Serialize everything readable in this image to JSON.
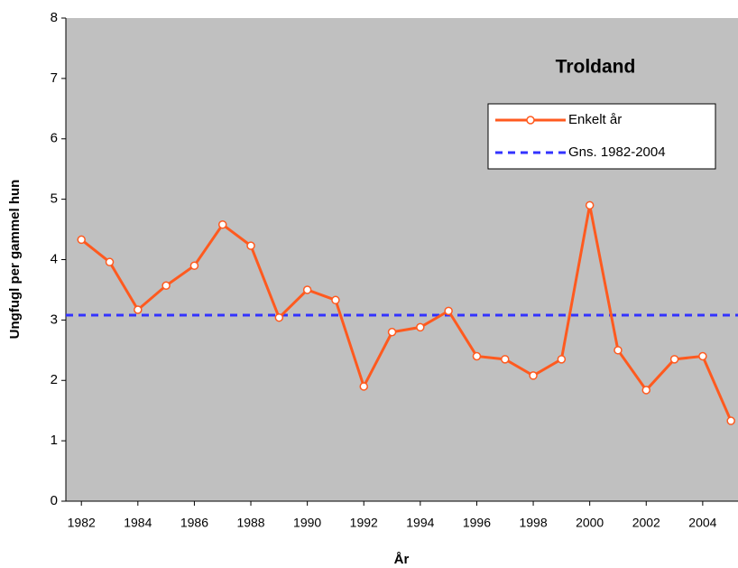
{
  "chart_data": {
    "type": "line",
    "title": "Troldand",
    "xlabel": "År",
    "ylabel": "Ungfugl per gammel hun",
    "x": [
      1982,
      1983,
      1984,
      1985,
      1986,
      1987,
      1988,
      1989,
      1990,
      1991,
      1992,
      1993,
      1994,
      1995,
      1996,
      1997,
      1998,
      1999,
      2000,
      2001,
      2002,
      2003,
      2004,
      2005
    ],
    "series": [
      {
        "name": "Enkelt år",
        "color": "#ff5a1f",
        "values": [
          4.33,
          3.96,
          3.17,
          3.57,
          3.9,
          4.58,
          4.23,
          3.04,
          3.5,
          3.33,
          1.9,
          2.8,
          2.88,
          3.15,
          2.4,
          2.35,
          2.08,
          2.35,
          4.9,
          2.5,
          1.84,
          2.35,
          2.4,
          1.33
        ]
      }
    ],
    "reference_lines": [
      {
        "name": "Gns. 1982-2004",
        "color": "#3333ff",
        "value": 3.08
      }
    ],
    "xlim": [
      1981.45,
      2005.25
    ],
    "xticks": [
      1982,
      1984,
      1986,
      1988,
      1990,
      1992,
      1994,
      1996,
      1998,
      2000,
      2002,
      2004
    ],
    "ylim": [
      0,
      8
    ],
    "yticks": [
      0,
      1,
      2,
      3,
      4,
      5,
      6,
      7,
      8
    ],
    "grid": false,
    "legend": "upper right",
    "background": "#c0c0c0"
  }
}
